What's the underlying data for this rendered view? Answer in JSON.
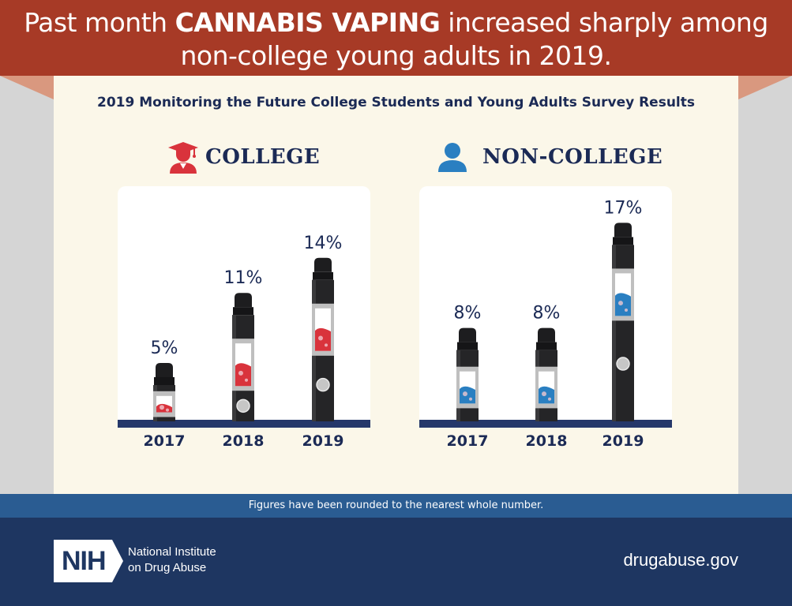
{
  "header": {
    "title_pre": "Past month ",
    "title_bold": "CANNABIS VAPING",
    "title_post": " increased sharply among",
    "title_line2": "non-college young adults in 2019."
  },
  "subtitle": "2019 Monitoring the Future College Students and Young Adults Survey Results",
  "groups": [
    {
      "name": "COLLEGE",
      "icon": "graduate-icon",
      "color": "#d9333c"
    },
    {
      "name": "NON-COLLEGE",
      "icon": "person-icon",
      "color": "#2a7fc1"
    }
  ],
  "chart_data": [
    {
      "type": "bar",
      "categories": [
        "2017",
        "2018",
        "2019"
      ],
      "values": [
        5,
        11,
        14
      ],
      "labels": [
        "5%",
        "11%",
        "14%"
      ],
      "title": "COLLEGE",
      "ylim": [
        0,
        17
      ],
      "color": "#d9333c"
    },
    {
      "type": "bar",
      "categories": [
        "2017",
        "2018",
        "2019"
      ],
      "values": [
        8,
        8,
        17
      ],
      "labels": [
        "8%",
        "8%",
        "17%"
      ],
      "title": "NON-COLLEGE",
      "ylim": [
        0,
        17
      ],
      "color": "#2a7fc1"
    }
  ],
  "footnote": "Figures have been rounded to the nearest whole number.",
  "footer": {
    "logo_text": "NIH",
    "org_line1": "National Institute",
    "org_line2": "on Drug Abuse",
    "website": "drugabuse.gov"
  },
  "colors": {
    "banner": "#a73a26",
    "panel": "#fbf7e9",
    "navy": "#1e3661",
    "footnote_bar": "#2a5c92"
  }
}
